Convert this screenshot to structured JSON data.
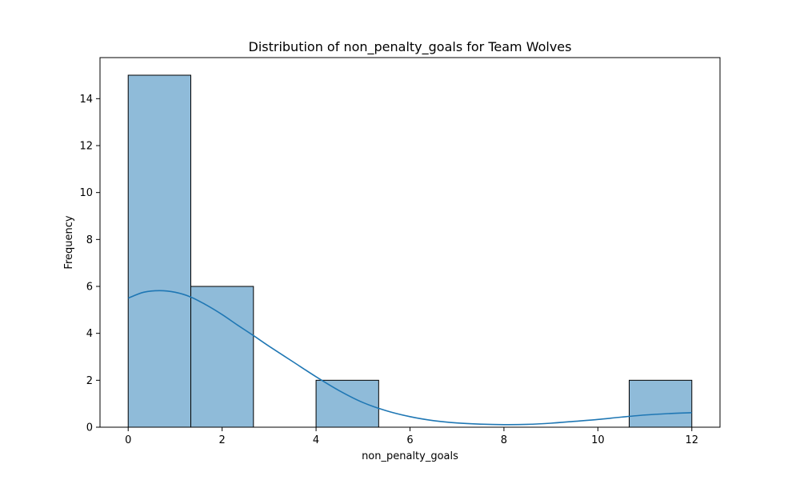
{
  "chart_data": {
    "type": "bar",
    "title": "Distribution of non_penalty_goals for Team Wolves",
    "xlabel": "non_penalty_goals",
    "ylabel": "Frequency",
    "xlim": [
      -0.6,
      12.6
    ],
    "ylim": [
      0,
      15.75
    ],
    "xticks": [
      0,
      2,
      4,
      6,
      8,
      10,
      12
    ],
    "yticks": [
      0,
      2,
      4,
      6,
      8,
      10,
      12,
      14
    ],
    "grid": false,
    "bar_color": "#8fbbd9",
    "bar_edge_color": "#000000",
    "kde_color": "#1f77b4",
    "bins": [
      {
        "x0": 0.0,
        "x1": 1.333,
        "count": 15
      },
      {
        "x0": 1.333,
        "x1": 2.667,
        "count": 6
      },
      {
        "x0": 2.667,
        "x1": 4.0,
        "count": 0
      },
      {
        "x0": 4.0,
        "x1": 5.333,
        "count": 2
      },
      {
        "x0": 5.333,
        "x1": 6.667,
        "count": 0
      },
      {
        "x0": 6.667,
        "x1": 8.0,
        "count": 0
      },
      {
        "x0": 8.0,
        "x1": 9.333,
        "count": 0
      },
      {
        "x0": 9.333,
        "x1": 10.667,
        "count": 0
      },
      {
        "x0": 10.667,
        "x1": 12.0,
        "count": 2
      }
    ],
    "kde": {
      "x": [
        0,
        0.33,
        0.67,
        1,
        1.33,
        1.67,
        2,
        2.33,
        2.67,
        3,
        3.5,
        4,
        4.5,
        5,
        5.5,
        6,
        6.5,
        7,
        7.5,
        8,
        8.5,
        9,
        9.5,
        10,
        10.5,
        11,
        11.5,
        12
      ],
      "y": [
        5.5,
        5.75,
        5.82,
        5.75,
        5.55,
        5.2,
        4.8,
        4.35,
        3.9,
        3.45,
        2.8,
        2.15,
        1.55,
        1.05,
        0.7,
        0.45,
        0.28,
        0.18,
        0.13,
        0.11,
        0.12,
        0.17,
        0.25,
        0.33,
        0.43,
        0.52,
        0.58,
        0.62
      ]
    }
  }
}
